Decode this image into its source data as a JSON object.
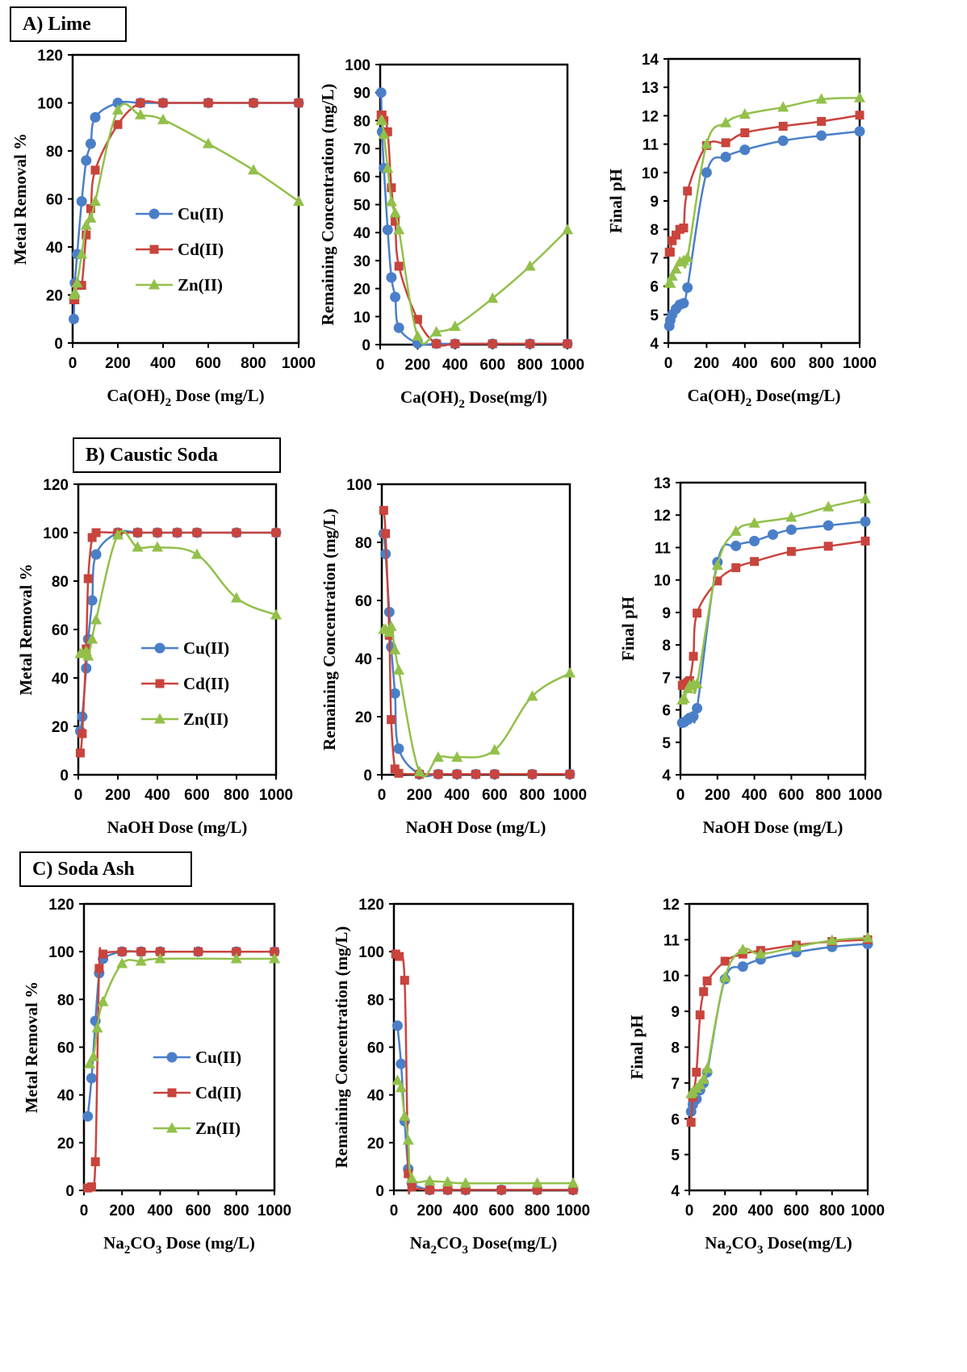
{
  "sections": [
    {
      "label": "A) Lime"
    },
    {
      "label": "B) Caustic Soda"
    },
    {
      "label": "C) Soda Ash"
    }
  ],
  "colors": {
    "Cu": "#4a7fc8",
    "Cd": "#c8443d",
    "Zn": "#92c04a",
    "axis": "#000000"
  },
  "chart_data": [
    {
      "type": "line",
      "section": "A) Lime",
      "ylabel": "Metal Removal %",
      "xlabel": "Ca(OH)₂ Dose (mg/L)",
      "xlim": [
        0,
        1000
      ],
      "ylim": [
        0,
        120
      ],
      "xticks": [
        "0",
        "200",
        "400",
        "600",
        "800",
        "1000"
      ],
      "yticks": [
        "0",
        "20",
        "40",
        "60",
        "80",
        "100",
        "120"
      ],
      "legend": "center-left",
      "series": [
        {
          "name": "Cu(II)",
          "x": [
            5,
            10,
            20,
            40,
            60,
            80,
            100,
            200,
            300,
            400,
            600,
            800,
            1000
          ],
          "y": [
            10,
            25,
            37,
            59,
            76,
            83,
            94,
            100,
            100,
            100,
            100,
            100,
            100
          ]
        },
        {
          "name": "Cd(II)",
          "x": [
            5,
            10,
            20,
            40,
            60,
            80,
            100,
            200,
            300,
            400,
            600,
            800,
            1000
          ],
          "y": [
            18,
            18,
            24,
            24,
            45,
            56,
            72,
            91,
            100,
            100,
            100,
            100,
            100
          ]
        },
        {
          "name": "Zn(II)",
          "x": [
            5,
            10,
            20,
            40,
            60,
            80,
            100,
            200,
            300,
            400,
            600,
            800,
            1000
          ],
          "y": [
            20,
            21,
            25,
            37,
            49,
            52,
            59,
            97,
            95,
            93,
            83,
            72,
            59
          ]
        }
      ]
    },
    {
      "type": "line",
      "section": "A) Lime",
      "ylabel": "Remaining Concentration (mg/L)",
      "xlabel": "Ca(OH)₂ Dose(mg/l)",
      "xlim": [
        0,
        1000
      ],
      "ylim": [
        0,
        100
      ],
      "xticks": [
        "0",
        "200",
        "400",
        "600",
        "800",
        "1000"
      ],
      "yticks": [
        "0",
        "10",
        "20",
        "30",
        "40",
        "50",
        "60",
        "70",
        "80",
        "90",
        "100"
      ],
      "series": [
        {
          "name": "Cu(II)",
          "x": [
            5,
            10,
            20,
            40,
            60,
            80,
            100,
            200,
            300,
            400,
            600,
            800,
            1000
          ],
          "y": [
            90,
            76,
            63,
            41,
            24,
            17,
            6,
            0.5,
            0.3,
            0.3,
            0.3,
            0.3,
            0.3
          ]
        },
        {
          "name": "Cd(II)",
          "x": [
            5,
            10,
            20,
            40,
            60,
            80,
            100,
            200,
            300,
            400,
            600,
            800,
            1000
          ],
          "y": [
            82,
            82,
            80,
            76,
            56,
            44,
            28,
            9,
            0.3,
            0.3,
            0.3,
            0.3,
            0.3
          ]
        },
        {
          "name": "Zn(II)",
          "x": [
            5,
            10,
            20,
            40,
            60,
            80,
            100,
            200,
            300,
            400,
            600,
            800,
            1000
          ],
          "y": [
            80,
            80,
            75,
            63,
            51,
            47,
            41,
            3,
            4.5,
            6.5,
            16.5,
            28,
            41
          ]
        }
      ]
    },
    {
      "type": "line",
      "section": "A) Lime",
      "ylabel": "Final pH",
      "xlabel": "Ca(OH)₂ Dose(mg/L)",
      "xlim": [
        0,
        1000
      ],
      "ylim": [
        4,
        14
      ],
      "xticks": [
        "0",
        "200",
        "400",
        "600",
        "800",
        "1000"
      ],
      "yticks": [
        "4",
        "5",
        "6",
        "7",
        "8",
        "9",
        "10",
        "11",
        "12",
        "13",
        "14"
      ],
      "series": [
        {
          "name": "Cu(II)",
          "x": [
            5,
            10,
            20,
            40,
            60,
            80,
            100,
            200,
            300,
            400,
            600,
            800,
            1000
          ],
          "y": [
            4.6,
            4.8,
            5.0,
            5.2,
            5.35,
            5.4,
            5.95,
            10.0,
            10.55,
            10.8,
            11.12,
            11.3,
            11.45
          ]
        },
        {
          "name": "Cd(II)",
          "x": [
            5,
            10,
            20,
            40,
            60,
            80,
            100,
            200,
            300,
            400,
            600,
            800,
            1000
          ],
          "y": [
            7.2,
            7.2,
            7.6,
            7.8,
            8.0,
            8.05,
            9.35,
            10.95,
            11.05,
            11.4,
            11.63,
            11.8,
            12.02
          ]
        },
        {
          "name": "Zn(II)",
          "x": [
            5,
            10,
            20,
            40,
            60,
            80,
            100,
            200,
            300,
            400,
            600,
            800,
            1000
          ],
          "y": [
            6.1,
            6.1,
            6.35,
            6.6,
            6.85,
            6.9,
            7.0,
            11.0,
            11.75,
            12.05,
            12.3,
            12.58,
            12.63
          ]
        }
      ]
    },
    {
      "type": "line",
      "section": "B) Caustic Soda",
      "ylabel": "Metal Removal %",
      "xlabel": "NaOH Dose (mg/L)",
      "xlim": [
        0,
        1000
      ],
      "ylim": [
        0,
        120
      ],
      "xticks": [
        "0",
        "200",
        "400",
        "600",
        "800",
        "1000"
      ],
      "yticks": [
        "0",
        "20",
        "40",
        "60",
        "80",
        "100",
        "120"
      ],
      "legend": "center-left",
      "series": [
        {
          "name": "Cu(II)",
          "x": [
            10,
            20,
            40,
            50,
            70,
            90,
            200,
            300,
            400,
            500,
            600,
            800,
            1000
          ],
          "y": [
            18,
            24,
            44,
            56,
            72,
            91,
            100,
            100,
            100,
            100,
            100,
            100,
            100
          ]
        },
        {
          "name": "Cd(II)",
          "x": [
            10,
            20,
            40,
            50,
            70,
            90,
            200,
            300,
            400,
            500,
            600,
            800,
            1000
          ],
          "y": [
            9,
            17,
            52,
            81,
            98,
            100,
            100,
            100,
            100,
            100,
            100,
            100,
            100
          ]
        },
        {
          "name": "Zn(II)",
          "x": [
            10,
            20,
            40,
            50,
            70,
            90,
            200,
            300,
            400,
            600,
            800,
            1000
          ],
          "y": [
            50,
            50,
            51,
            49,
            56,
            64,
            99,
            94,
            94,
            91,
            73,
            66
          ]
        }
      ]
    },
    {
      "type": "line",
      "section": "B) Caustic Soda",
      "ylabel": "Remaining Concentration (mg/L)",
      "xlabel": "NaOH Dose (mg/L)",
      "xlim": [
        0,
        1000
      ],
      "ylim": [
        0,
        100
      ],
      "xticks": [
        "0",
        "200",
        "400",
        "600",
        "800",
        "1000"
      ],
      "yticks": [
        "0",
        "20",
        "40",
        "60",
        "80",
        "100"
      ],
      "series": [
        {
          "name": "Cu(II)",
          "x": [
            10,
            20,
            40,
            50,
            70,
            90,
            200,
            300,
            400,
            500,
            600,
            800,
            1000
          ],
          "y": [
            83,
            76,
            56,
            44,
            28,
            9,
            0.2,
            0.2,
            0.2,
            0.2,
            0.2,
            0.2,
            0.2
          ]
        },
        {
          "name": "Cd(II)",
          "x": [
            10,
            20,
            40,
            50,
            70,
            90,
            200,
            300,
            400,
            500,
            600,
            800,
            1000
          ],
          "y": [
            91,
            83,
            48,
            19,
            2,
            0.5,
            0.2,
            0.2,
            0.2,
            0.2,
            0.2,
            0.2,
            0.2
          ]
        },
        {
          "name": "Zn(II)",
          "x": [
            10,
            20,
            40,
            50,
            70,
            90,
            200,
            300,
            400,
            600,
            800,
            1000
          ],
          "y": [
            50,
            50,
            49,
            51,
            43,
            36,
            1,
            6,
            6,
            8.5,
            27,
            35
          ]
        }
      ]
    },
    {
      "type": "line",
      "section": "B) Caustic Soda",
      "ylabel": "Final pH",
      "xlabel": "NaOH Dose (mg/L)",
      "xlim": [
        0,
        1000
      ],
      "ylim": [
        4,
        13
      ],
      "xticks": [
        "0",
        "200",
        "400",
        "600",
        "800",
        "1000"
      ],
      "yticks": [
        "4",
        "5",
        "6",
        "7",
        "8",
        "9",
        "10",
        "11",
        "12",
        "13"
      ],
      "series": [
        {
          "name": "Cu(II)",
          "x": [
            10,
            20,
            40,
            50,
            70,
            90,
            200,
            300,
            400,
            500,
            600,
            800,
            1000
          ],
          "y": [
            5.6,
            5.62,
            5.7,
            5.75,
            5.8,
            6.05,
            10.55,
            11.05,
            11.2,
            11.4,
            11.55,
            11.68,
            11.8
          ]
        },
        {
          "name": "Cd(II)",
          "x": [
            10,
            20,
            40,
            50,
            70,
            90,
            200,
            300,
            400,
            600,
            800,
            1000
          ],
          "y": [
            6.75,
            6.8,
            6.85,
            6.9,
            7.65,
            8.98,
            9.97,
            10.38,
            10.57,
            10.88,
            11.04,
            11.2
          ]
        },
        {
          "name": "Zn(II)",
          "x": [
            10,
            20,
            40,
            50,
            70,
            90,
            200,
            300,
            400,
            600,
            800,
            1000
          ],
          "y": [
            6.3,
            6.35,
            6.65,
            6.75,
            6.8,
            6.8,
            10.45,
            11.5,
            11.75,
            11.93,
            12.25,
            12.5
          ]
        }
      ]
    },
    {
      "type": "line",
      "section": "C) Soda Ash",
      "ylabel": "Metal Removal %",
      "xlabel": "Na₂CO₃ Dose (mg/L)",
      "xlim": [
        0,
        1000
      ],
      "ylim": [
        0,
        120
      ],
      "xticks": [
        "0",
        "200",
        "400",
        "600",
        "800",
        "1000"
      ],
      "yticks": [
        "0",
        "20",
        "40",
        "60",
        "80",
        "100",
        "120"
      ],
      "legend": "center-left",
      "series": [
        {
          "name": "Cu(II)",
          "x": [
            20,
            40,
            60,
            80,
            100,
            200,
            300,
            400,
            600,
            800,
            1000
          ],
          "y": [
            31,
            47,
            71,
            91,
            97,
            100,
            100,
            100,
            100,
            100,
            100
          ]
        },
        {
          "name": "Cd(II)",
          "x": [
            20,
            40,
            60,
            80,
            100,
            200,
            300,
            400,
            600,
            800,
            1000
          ],
          "y": [
            1,
            1.5,
            12,
            93,
            99,
            100,
            100,
            100,
            100,
            100,
            100
          ]
        },
        {
          "name": "Zn(II)",
          "x": [
            30,
            50,
            70,
            100,
            200,
            300,
            400,
            800,
            1000
          ],
          "y": [
            53,
            56,
            68,
            79,
            95,
            96,
            97,
            97,
            97
          ]
        }
      ]
    },
    {
      "type": "line",
      "section": "C) Soda Ash",
      "ylabel": "Remaining Concentration (mg/L)",
      "xlabel": "Na₂CO₃ Dose(mg/L)",
      "xlim": [
        0,
        1000
      ],
      "ylim": [
        0,
        120
      ],
      "xticks": [
        "0",
        "200",
        "400",
        "600",
        "800",
        "1000"
      ],
      "yticks": [
        "0",
        "20",
        "40",
        "60",
        "80",
        "100",
        "120"
      ],
      "series": [
        {
          "name": "Cu(II)",
          "x": [
            20,
            40,
            60,
            80,
            100,
            200,
            300,
            400,
            600,
            800,
            1000
          ],
          "y": [
            69,
            53,
            29,
            9,
            3,
            0.2,
            0.2,
            0.2,
            0.2,
            0.2,
            0.2
          ]
        },
        {
          "name": "Cd(II)",
          "x": [
            10,
            30,
            60,
            80,
            100,
            200,
            300,
            400,
            600,
            800,
            1000
          ],
          "y": [
            99,
            98,
            88,
            7,
            1.5,
            0.2,
            0.2,
            0.2,
            0.2,
            0.2,
            0.2
          ]
        },
        {
          "name": "Zn(II)",
          "x": [
            20,
            40,
            60,
            80,
            100,
            200,
            300,
            400,
            800,
            1000
          ],
          "y": [
            46,
            43,
            31,
            21,
            5,
            4,
            3.5,
            3,
            3,
            3
          ]
        }
      ]
    },
    {
      "type": "line",
      "section": "C) Soda Ash",
      "ylabel": "Final pH",
      "xlabel": "Na₂CO₃ Dose(mg/L)",
      "xlim": [
        0,
        1000
      ],
      "ylim": [
        4,
        12
      ],
      "xticks": [
        "0",
        "200",
        "400",
        "600",
        "800",
        "1000"
      ],
      "yticks": [
        "4",
        "5",
        "6",
        "7",
        "8",
        "9",
        "10",
        "11",
        "12"
      ],
      "series": [
        {
          "name": "Cu(II)",
          "x": [
            10,
            20,
            40,
            60,
            80,
            100,
            200,
            300,
            400,
            600,
            800,
            1000
          ],
          "y": [
            6.2,
            6.4,
            6.55,
            6.8,
            7.0,
            7.3,
            9.9,
            10.25,
            10.45,
            10.65,
            10.8,
            10.88
          ]
        },
        {
          "name": "Cd(II)",
          "x": [
            10,
            20,
            40,
            60,
            80,
            100,
            200,
            300,
            400,
            600,
            800,
            1000
          ],
          "y": [
            5.9,
            6.6,
            7.3,
            8.9,
            9.55,
            9.85,
            10.4,
            10.6,
            10.7,
            10.85,
            10.95,
            11.0
          ]
        },
        {
          "name": "Zn(II)",
          "x": [
            10,
            20,
            40,
            60,
            80,
            100,
            200,
            300,
            400,
            600,
            800,
            1000
          ],
          "y": [
            6.7,
            6.75,
            6.85,
            6.95,
            7.1,
            7.4,
            9.95,
            10.72,
            10.6,
            10.8,
            10.98,
            11.05
          ]
        }
      ]
    }
  ]
}
